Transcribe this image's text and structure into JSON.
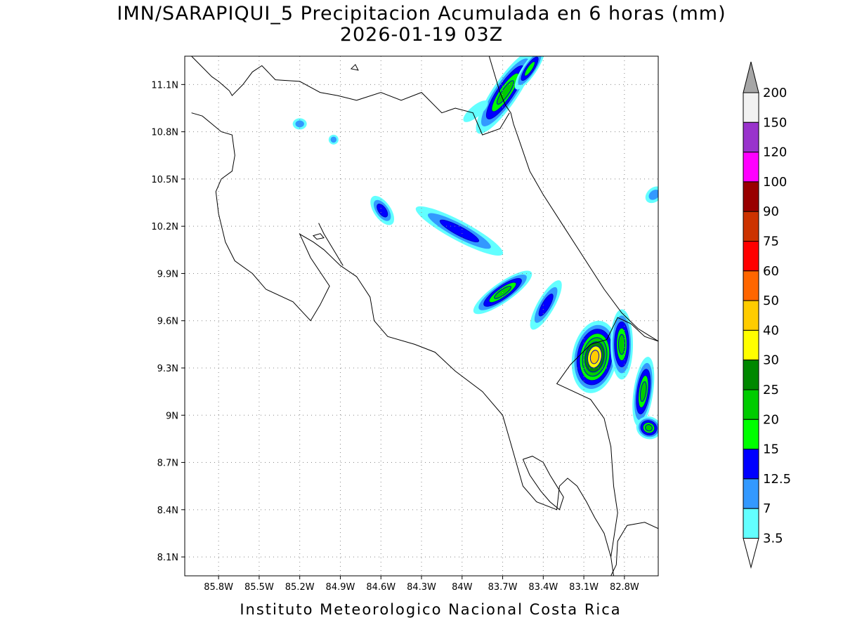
{
  "header": {
    "title": "IMN/SARAPIQUI_5 Precipitacion Acumulada en 6 horas (mm)",
    "subtitle": "2026-01-19 03Z"
  },
  "footer": {
    "credit": "Instituto Meteorologico Nacional Costa Rica"
  },
  "map": {
    "lon_range": [
      -86.05,
      -82.55
    ],
    "lat_range": [
      7.98,
      11.28
    ],
    "x_ticks": [
      "85.8W",
      "85.5W",
      "85.2W",
      "84.9W",
      "84.6W",
      "84.3W",
      "84W",
      "83.7W",
      "83.4W",
      "83.1W",
      "82.8W"
    ],
    "x_tick_values": [
      -85.8,
      -85.5,
      -85.2,
      -84.9,
      -84.6,
      -84.3,
      -84.0,
      -83.7,
      -83.4,
      -83.1,
      -82.8
    ],
    "y_ticks": [
      "8.1N",
      "8.4N",
      "8.7N",
      "9N",
      "9.3N",
      "9.6N",
      "9.9N",
      "10.2N",
      "10.5N",
      "10.8N",
      "11.1N"
    ],
    "y_tick_values": [
      8.1,
      8.4,
      8.7,
      9.0,
      9.3,
      9.6,
      9.9,
      10.2,
      10.5,
      10.8,
      11.1
    ],
    "grid": "dotted",
    "coastline_color": "#000000"
  },
  "colorbar": {
    "levels": [
      "3.5",
      "7",
      "12.5",
      "15",
      "20",
      "25",
      "30",
      "40",
      "50",
      "60",
      "75",
      "90",
      "100",
      "120",
      "150",
      "200"
    ],
    "colors": [
      "#ffffff",
      "#63ffff",
      "#3399ff",
      "#0000ff",
      "#00ff00",
      "#00cc00",
      "#008800",
      "#ffff00",
      "#ffcc00",
      "#ff6600",
      "#ff0000",
      "#cc3300",
      "#990000",
      "#ff00ff",
      "#9933cc",
      "#f2f2f2",
      "#a6a6a6"
    ]
  },
  "precip_cells": [
    {
      "name": "cell-north-caribbean",
      "lon": -83.68,
      "lat": 11.05,
      "level": 20
    },
    {
      "name": "cell-north-east",
      "lon": -83.5,
      "lat": 11.2,
      "level": 15
    },
    {
      "name": "cell-north-small",
      "lon": -83.9,
      "lat": 10.93,
      "level": 3.5
    },
    {
      "name": "cell-upala",
      "lon": -85.2,
      "lat": 10.85,
      "level": 7
    },
    {
      "name": "cell-upala-2",
      "lon": -84.95,
      "lat": 10.75,
      "level": 7
    },
    {
      "name": "cell-sancarlos",
      "lon": -84.59,
      "lat": 10.3,
      "level": 12.5
    },
    {
      "name": "cell-central-band",
      "lon": -84.02,
      "lat": 10.17,
      "level": 12.5
    },
    {
      "name": "cell-central-band-2",
      "lon": -83.7,
      "lat": 9.78,
      "level": 20
    },
    {
      "name": "cell-central-band-3",
      "lon": -83.38,
      "lat": 9.7,
      "level": 12.5
    },
    {
      "name": "cell-talamanca",
      "lon": -83.02,
      "lat": 9.37,
      "level": 40
    },
    {
      "name": "cell-talamanca-2",
      "lon": -82.82,
      "lat": 9.45,
      "level": 20
    },
    {
      "name": "cell-south-east",
      "lon": -82.66,
      "lat": 9.15,
      "level": 20
    },
    {
      "name": "cell-south-east-2",
      "lon": -82.62,
      "lat": 8.92,
      "level": 20
    },
    {
      "name": "cell-east-edge",
      "lon": -82.58,
      "lat": 10.4,
      "level": 7
    }
  ]
}
